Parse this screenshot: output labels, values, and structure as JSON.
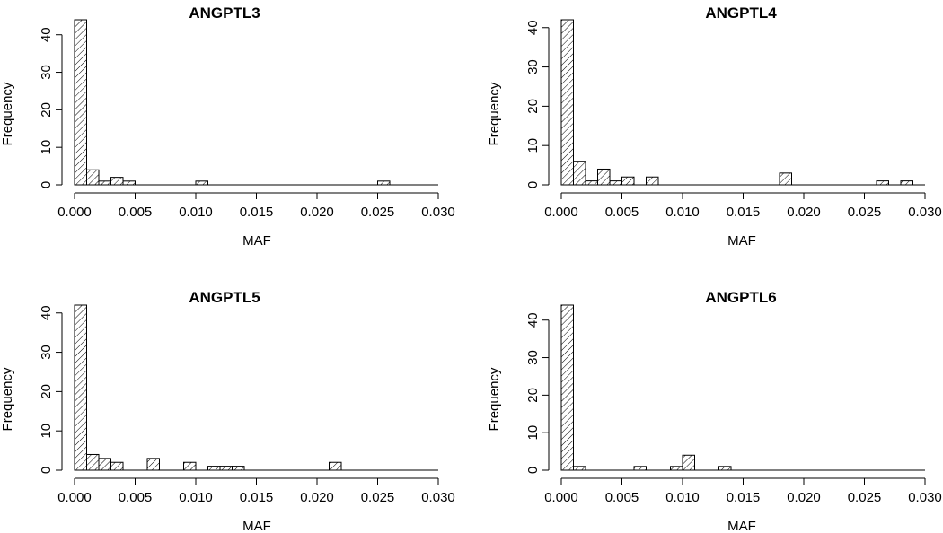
{
  "chart_data": [
    {
      "type": "bar",
      "title": "ANGPTL3",
      "xlabel": "MAF",
      "ylabel": "Frequency",
      "x_ticks": [
        "0.000",
        "0.005",
        "0.010",
        "0.015",
        "0.020",
        "0.025",
        "0.030"
      ],
      "y_ticks": [
        "0",
        "10",
        "20",
        "30",
        "40"
      ],
      "xlim": [
        0,
        0.03
      ],
      "ylim": [
        0,
        44
      ],
      "bin_width": 0.001,
      "bins": [
        {
          "x0": 0.0,
          "count": 44
        },
        {
          "x0": 0.001,
          "count": 4
        },
        {
          "x0": 0.002,
          "count": 1
        },
        {
          "x0": 0.003,
          "count": 2
        },
        {
          "x0": 0.004,
          "count": 1
        },
        {
          "x0": 0.01,
          "count": 1
        },
        {
          "x0": 0.025,
          "count": 1
        }
      ]
    },
    {
      "type": "bar",
      "title": "ANGPTL4",
      "xlabel": "MAF",
      "ylabel": "Frequency",
      "x_ticks": [
        "0.000",
        "0.005",
        "0.010",
        "0.015",
        "0.020",
        "0.025",
        "0.030"
      ],
      "y_ticks": [
        "0",
        "10",
        "20",
        "30",
        "40"
      ],
      "xlim": [
        0,
        0.03
      ],
      "ylim": [
        0,
        42
      ],
      "bin_width": 0.001,
      "bins": [
        {
          "x0": 0.0,
          "count": 42
        },
        {
          "x0": 0.001,
          "count": 6
        },
        {
          "x0": 0.002,
          "count": 1
        },
        {
          "x0": 0.003,
          "count": 4
        },
        {
          "x0": 0.004,
          "count": 1
        },
        {
          "x0": 0.005,
          "count": 2
        },
        {
          "x0": 0.007,
          "count": 2
        },
        {
          "x0": 0.018,
          "count": 3
        },
        {
          "x0": 0.026,
          "count": 1
        },
        {
          "x0": 0.028,
          "count": 1
        }
      ]
    },
    {
      "type": "bar",
      "title": "ANGPTL5",
      "xlabel": "MAF",
      "ylabel": "Frequency",
      "x_ticks": [
        "0.000",
        "0.005",
        "0.010",
        "0.015",
        "0.020",
        "0.025",
        "0.030"
      ],
      "y_ticks": [
        "0",
        "10",
        "20",
        "30",
        "40"
      ],
      "xlim": [
        0,
        0.03
      ],
      "ylim": [
        0,
        42
      ],
      "bin_width": 0.001,
      "bins": [
        {
          "x0": 0.0,
          "count": 42
        },
        {
          "x0": 0.001,
          "count": 4
        },
        {
          "x0": 0.002,
          "count": 3
        },
        {
          "x0": 0.003,
          "count": 2
        },
        {
          "x0": 0.006,
          "count": 3
        },
        {
          "x0": 0.009,
          "count": 2
        },
        {
          "x0": 0.011,
          "count": 1
        },
        {
          "x0": 0.012,
          "count": 1
        },
        {
          "x0": 0.013,
          "count": 1
        },
        {
          "x0": 0.021,
          "count": 2
        }
      ]
    },
    {
      "type": "bar",
      "title": "ANGPTL6",
      "xlabel": "MAF",
      "ylabel": "Frequency",
      "x_ticks": [
        "0.000",
        "0.005",
        "0.010",
        "0.015",
        "0.020",
        "0.025",
        "0.030"
      ],
      "y_ticks": [
        "0",
        "10",
        "20",
        "30",
        "40"
      ],
      "xlim": [
        0,
        0.03
      ],
      "ylim": [
        0,
        44
      ],
      "bin_width": 0.001,
      "bins": [
        {
          "x0": 0.0,
          "count": 44
        },
        {
          "x0": 0.001,
          "count": 1
        },
        {
          "x0": 0.006,
          "count": 1
        },
        {
          "x0": 0.009,
          "count": 1
        },
        {
          "x0": 0.01,
          "count": 4
        },
        {
          "x0": 0.013,
          "count": 1
        }
      ]
    }
  ]
}
